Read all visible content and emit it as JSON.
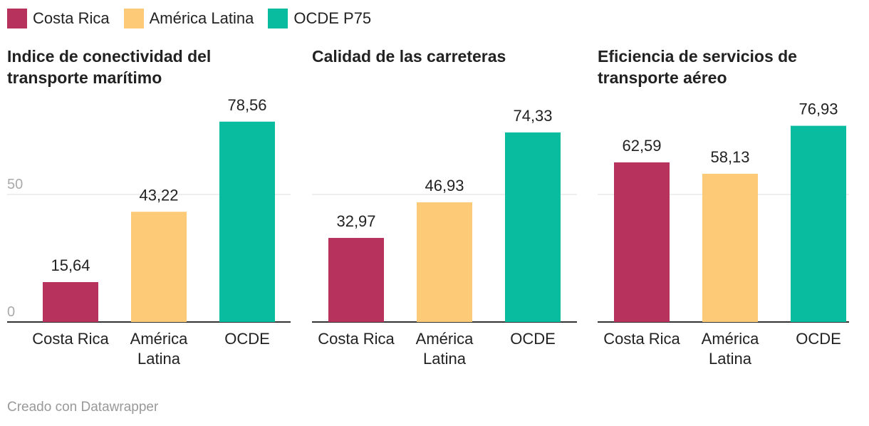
{
  "legend": [
    {
      "name": "Costa Rica",
      "color": "#b8325e"
    },
    {
      "name": "América Latina",
      "color": "#fdca78"
    },
    {
      "name": "OCDE P75",
      "color": "#0abc9f"
    }
  ],
  "chart_data": [
    {
      "type": "bar",
      "title": "Indice de conectividad del transporte marítimo",
      "categories": [
        "Costa Rica",
        "América Latina",
        "OCDE"
      ],
      "values": [
        15.64,
        43.22,
        78.56
      ],
      "value_labels": [
        "15,64",
        "43,22",
        "78,56"
      ],
      "ylim": [
        0,
        80
      ],
      "yticks": [
        0,
        50
      ],
      "show_tick_labels": true,
      "grid": true
    },
    {
      "type": "bar",
      "title": "Calidad de las carreteras",
      "categories": [
        "Costa Rica",
        "América Latina",
        "OCDE"
      ],
      "values": [
        32.97,
        46.93,
        74.33
      ],
      "value_labels": [
        "32,97",
        "46,93",
        "74,33"
      ],
      "ylim": [
        0,
        80
      ],
      "yticks": [
        0,
        50
      ],
      "show_tick_labels": false,
      "grid": true
    },
    {
      "type": "bar",
      "title": "Eficiencia de servicios de transporte aéreo",
      "categories": [
        "Costa Rica",
        "América Latina",
        "OCDE"
      ],
      "values": [
        62.59,
        58.13,
        76.93
      ],
      "value_labels": [
        "62,59",
        "58,13",
        "76,93"
      ],
      "ylim": [
        0,
        80
      ],
      "yticks": [
        0,
        50
      ],
      "show_tick_labels": false,
      "grid": true
    }
  ],
  "footer": "Creado con Datawrapper"
}
